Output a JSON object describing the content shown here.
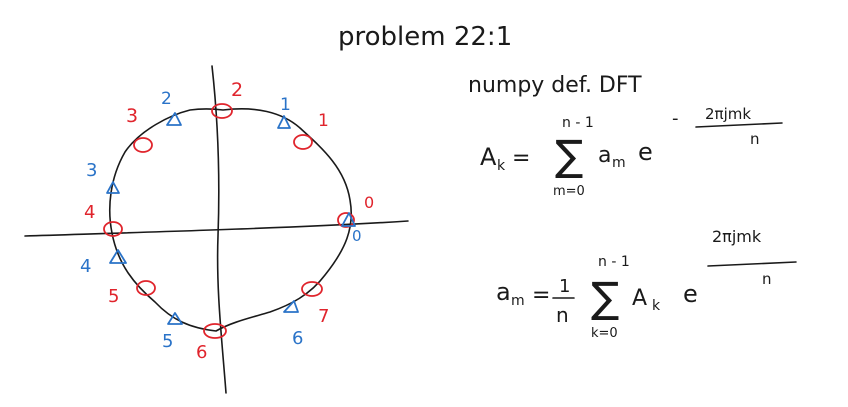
{
  "colors": {
    "ink": "#1a1a1a",
    "red": "#e0242c",
    "blue": "#2a73c8"
  },
  "title": "problem 22:1",
  "subtitle": "numpy def. DFT",
  "forward_formula": {
    "lhs": "A",
    "lhs_sub": "k",
    "equals": "=",
    "sum_top": "n - 1",
    "sum_symbol": "∑",
    "sum_bottom": "m=0",
    "term": "a",
    "term_sub": "m",
    "base": "e",
    "exponent_sign": "-",
    "exponent_num": "2πjmk",
    "exponent_den": "n"
  },
  "inverse_formula": {
    "lhs": "a",
    "lhs_sub": "m",
    "equals": "=",
    "frac_num": "1",
    "frac_den": "n",
    "sum_top": "n - 1",
    "sum_symbol": "∑",
    "sum_bottom": "k=0",
    "term": "A",
    "term_sub": "k",
    "base": "e",
    "exponent_num": "2πjmk",
    "exponent_den": "n"
  },
  "red_labels": [
    "0",
    "1",
    "2",
    "3",
    "4",
    "5",
    "6",
    "7"
  ],
  "blue_labels": [
    "0",
    "1",
    "2",
    "3",
    "4",
    "5",
    "6"
  ]
}
